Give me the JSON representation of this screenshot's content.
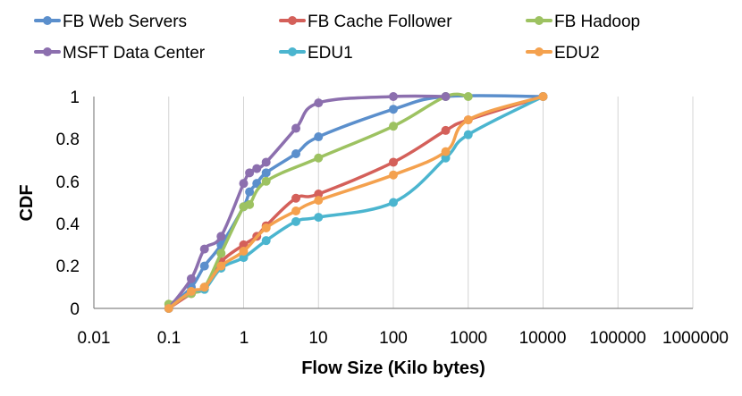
{
  "chart_data": {
    "type": "line",
    "title": "",
    "xlabel": "Flow Size (Kilo bytes)",
    "ylabel": "CDF",
    "xscale": "log",
    "xlim": [
      0.01,
      1000000
    ],
    "ylim": [
      0,
      1
    ],
    "grid": "vertical",
    "legend_position": "top",
    "x_tick_labels": [
      "0.01",
      "0.1",
      "1",
      "10",
      "100",
      "1000",
      "10000",
      "100000",
      "1000000"
    ],
    "y_tick_labels": [
      "0",
      "0.2",
      "0.4",
      "0.6",
      "0.8",
      "1"
    ],
    "series": [
      {
        "name": "FB Web Servers",
        "color": "#5B8FCC",
        "x": [
          0.1,
          0.2,
          0.3,
          0.5,
          1,
          1.2,
          1.5,
          2,
          5,
          10,
          100,
          500,
          10000
        ],
        "y": [
          0.0,
          0.1,
          0.2,
          0.3,
          0.48,
          0.55,
          0.59,
          0.64,
          0.73,
          0.81,
          0.94,
          1.0,
          1.0
        ]
      },
      {
        "name": "FB Cache Follower",
        "color": "#D4605A",
        "x": [
          0.1,
          0.2,
          0.3,
          0.5,
          1,
          1.5,
          2,
          5,
          10,
          100,
          500,
          1000,
          10000
        ],
        "y": [
          0.0,
          0.07,
          0.1,
          0.22,
          0.3,
          0.34,
          0.39,
          0.52,
          0.54,
          0.69,
          0.84,
          0.89,
          1.0
        ]
      },
      {
        "name": "FB Hadoop",
        "color": "#9DC261",
        "x": [
          0.1,
          0.2,
          0.3,
          0.5,
          1,
          1.2,
          2,
          10,
          100,
          500,
          1000
        ],
        "y": [
          0.02,
          0.07,
          0.1,
          0.26,
          0.48,
          0.49,
          0.6,
          0.71,
          0.86,
          1.0,
          1.0
        ]
      },
      {
        "name": "MSFT Data Center",
        "color": "#8C6FAE",
        "x": [
          0.1,
          0.2,
          0.3,
          0.5,
          1,
          1.2,
          1.5,
          2,
          5,
          10,
          100,
          500
        ],
        "y": [
          0.0,
          0.14,
          0.28,
          0.34,
          0.59,
          0.64,
          0.66,
          0.69,
          0.85,
          0.97,
          1.0,
          1.0
        ]
      },
      {
        "name": "EDU1",
        "color": "#4BB5CF",
        "x": [
          0.1,
          0.2,
          0.3,
          0.5,
          1,
          2,
          5,
          10,
          100,
          500,
          1000,
          10000
        ],
        "y": [
          0.0,
          0.08,
          0.09,
          0.19,
          0.24,
          0.32,
          0.41,
          0.43,
          0.5,
          0.71,
          0.82,
          1.0
        ]
      },
      {
        "name": "EDU2",
        "color": "#F4A14E",
        "x": [
          0.1,
          0.2,
          0.3,
          0.5,
          1,
          2,
          5,
          10,
          100,
          500,
          1000,
          10000
        ],
        "y": [
          0.0,
          0.08,
          0.1,
          0.2,
          0.27,
          0.38,
          0.46,
          0.51,
          0.63,
          0.74,
          0.89,
          1.0
        ]
      }
    ]
  }
}
